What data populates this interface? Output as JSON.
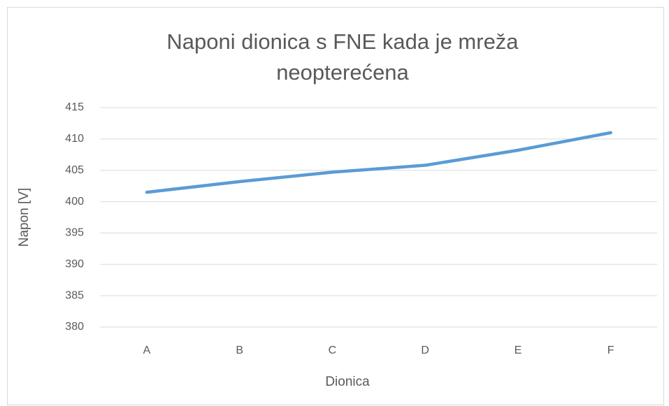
{
  "chart_data": {
    "type": "line",
    "title": "Naponi dionica s FNE kada je mreža neopterećena",
    "x_label": "Dionica",
    "y_label": "Napon [V]",
    "categories": [
      "A",
      "B",
      "C",
      "D",
      "E",
      "F"
    ],
    "series": [
      {
        "name": "Napon",
        "color": "#5b9bd5",
        "values": [
          401.5,
          403.2,
          404.7,
          405.8,
          408.2,
          411
        ]
      }
    ],
    "ylim": [
      380,
      415
    ],
    "yticks": [
      380,
      385,
      390,
      395,
      400,
      405,
      410,
      415
    ],
    "grid": true
  }
}
